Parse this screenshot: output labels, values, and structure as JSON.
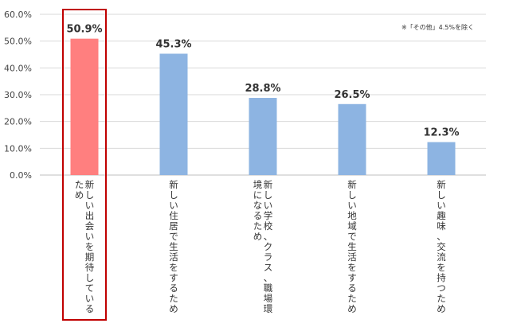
{
  "chart_data": {
    "type": "bar",
    "categories": [
      "新しい出会いを期待しているため",
      "新しい住居で生活をするため",
      "新しい学校、クラス、職場環境になるため",
      "新しい地域で生活をするため",
      "新しい趣味、交流を持つため"
    ],
    "values": [
      50.9,
      45.3,
      28.8,
      26.5,
      12.3
    ],
    "value_labels": [
      "50.9%",
      "45.3%",
      "28.8%",
      "26.5%",
      "12.3%"
    ],
    "ylim": [
      0,
      60
    ],
    "yticks": [
      "0.0%",
      "10.0%",
      "20.0%",
      "30.0%",
      "40.0%",
      "50.0%",
      "60.0%"
    ],
    "note": "※「その他」4.5%を除く",
    "grid": true,
    "highlighted_index": 0,
    "colors": {
      "highlight_bar": "#ff7f7f",
      "bar": "#8db4e2",
      "highlight_box": "#c00000",
      "grid": "#d9d9d9"
    }
  }
}
